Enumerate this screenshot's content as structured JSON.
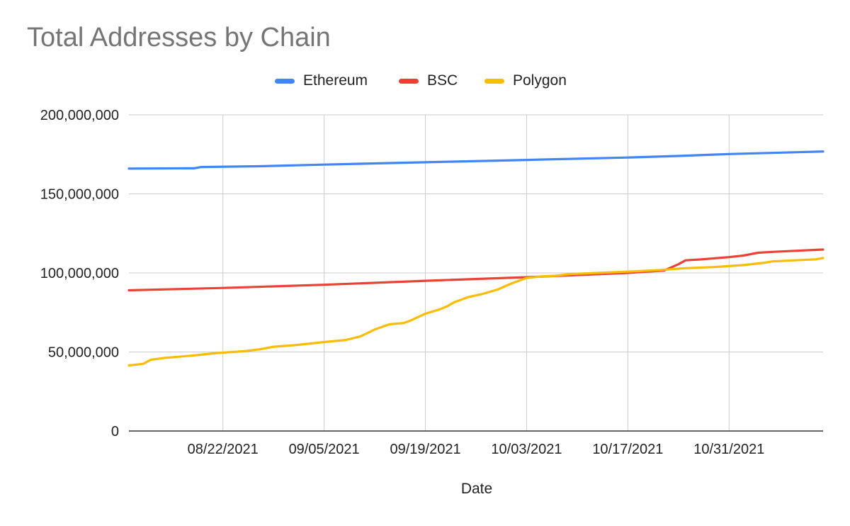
{
  "chart_data": {
    "type": "line",
    "title": "Total Addresses by Chain",
    "xlabel": "Date",
    "ylabel": "",
    "ylim": [
      0,
      200000000
    ],
    "xlim": [
      "2021-08-09",
      "2021-11-13"
    ],
    "y_ticks": [
      0,
      50000000,
      100000000,
      150000000,
      200000000
    ],
    "y_tick_labels": [
      "0",
      "50,000,000",
      "100,000,000",
      "150,000,000",
      "200,000,000"
    ],
    "x_ticks": [
      "2021-08-22",
      "2021-09-05",
      "2021-09-19",
      "2021-10-03",
      "2021-10-17",
      "2021-10-31"
    ],
    "x_tick_labels": [
      "08/22/2021",
      "09/05/2021",
      "09/19/2021",
      "10/03/2021",
      "10/17/2021",
      "10/31/2021"
    ],
    "grid": true,
    "legend_position": "top",
    "series": [
      {
        "name": "Ethereum",
        "color": "#4285F4",
        "points": [
          [
            "2021-08-09",
            166000000
          ],
          [
            "2021-08-17",
            166200000
          ],
          [
            "2021-08-18",
            166200000
          ],
          [
            "2021-08-19",
            167000000
          ],
          [
            "2021-08-27",
            167500000
          ],
          [
            "2021-09-05",
            168500000
          ],
          [
            "2021-09-19",
            170000000
          ],
          [
            "2021-10-03",
            171500000
          ],
          [
            "2021-10-17",
            173000000
          ],
          [
            "2021-10-24",
            174000000
          ],
          [
            "2021-10-31",
            175200000
          ],
          [
            "2021-11-13",
            176800000
          ]
        ]
      },
      {
        "name": "BSC",
        "color": "#EA4335",
        "points": [
          [
            "2021-08-09",
            89000000
          ],
          [
            "2021-08-22",
            90500000
          ],
          [
            "2021-09-05",
            92500000
          ],
          [
            "2021-09-19",
            95000000
          ],
          [
            "2021-10-03",
            97300000
          ],
          [
            "2021-10-17",
            100000000
          ],
          [
            "2021-10-22",
            101500000
          ],
          [
            "2021-10-24",
            105500000
          ],
          [
            "2021-10-25",
            108000000
          ],
          [
            "2021-10-27",
            108500000
          ],
          [
            "2021-10-31",
            110000000
          ],
          [
            "2021-11-02",
            111000000
          ],
          [
            "2021-11-04",
            112800000
          ],
          [
            "2021-11-06",
            113300000
          ],
          [
            "2021-11-13",
            114800000
          ]
        ]
      },
      {
        "name": "Polygon",
        "color": "#FBBC04",
        "points": [
          [
            "2021-08-09",
            41500000
          ],
          [
            "2021-08-11",
            42500000
          ],
          [
            "2021-08-12",
            45000000
          ],
          [
            "2021-08-14",
            46300000
          ],
          [
            "2021-08-18",
            47800000
          ],
          [
            "2021-08-21",
            49300000
          ],
          [
            "2021-08-25",
            50500000
          ],
          [
            "2021-08-27",
            51600000
          ],
          [
            "2021-08-29",
            53300000
          ],
          [
            "2021-09-01",
            54300000
          ],
          [
            "2021-09-05",
            56300000
          ],
          [
            "2021-09-08",
            57600000
          ],
          [
            "2021-09-10",
            59800000
          ],
          [
            "2021-09-12",
            64200000
          ],
          [
            "2021-09-14",
            67500000
          ],
          [
            "2021-09-16",
            68300000
          ],
          [
            "2021-09-17",
            70000000
          ],
          [
            "2021-09-19",
            74200000
          ],
          [
            "2021-09-21",
            77000000
          ],
          [
            "2021-09-22",
            78900000
          ],
          [
            "2021-09-23",
            81500000
          ],
          [
            "2021-09-25",
            84800000
          ],
          [
            "2021-09-27",
            86800000
          ],
          [
            "2021-09-29",
            89500000
          ],
          [
            "2021-10-01",
            93500000
          ],
          [
            "2021-10-03",
            96800000
          ],
          [
            "2021-10-05",
            97800000
          ],
          [
            "2021-10-07",
            98200000
          ],
          [
            "2021-10-09",
            99300000
          ],
          [
            "2021-10-17",
            100800000
          ],
          [
            "2021-10-21",
            101700000
          ],
          [
            "2021-10-25",
            103000000
          ],
          [
            "2021-10-29",
            103700000
          ],
          [
            "2021-11-02",
            105000000
          ],
          [
            "2021-11-05",
            106500000
          ],
          [
            "2021-11-06",
            107300000
          ],
          [
            "2021-11-12",
            108600000
          ],
          [
            "2021-11-13",
            109400000
          ]
        ]
      }
    ]
  }
}
